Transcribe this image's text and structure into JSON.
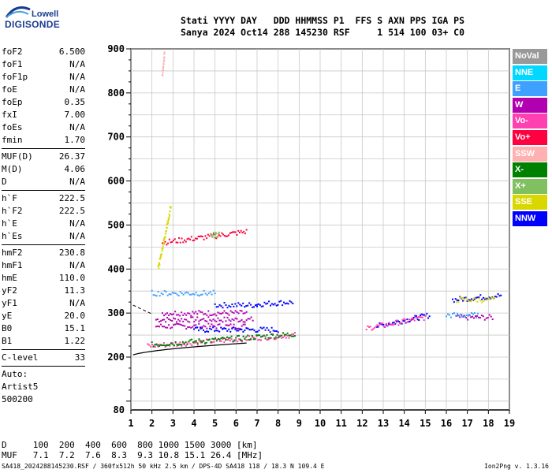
{
  "logo": {
    "line1": "Lowell",
    "line2": "DIGISONDE"
  },
  "header": {
    "row1": "Stati YYYY DAY   DDD HHMMSS P1  FFS S AXN PPS IGA PS",
    "row2": "Sanya 2024 Oct14 288 145230 RSF     1 514 100 03+ C0"
  },
  "params_block1": [
    {
      "name": "foF2",
      "value": "6.500"
    },
    {
      "name": "foF1",
      "value": "N/A"
    },
    {
      "name": "foF1p",
      "value": "N/A"
    },
    {
      "name": "foE",
      "value": "N/A"
    },
    {
      "name": "foEp",
      "value": "0.35"
    },
    {
      "name": "fxI",
      "value": "7.00"
    },
    {
      "name": "foEs",
      "value": "N/A"
    },
    {
      "name": "fmin",
      "value": "1.70"
    }
  ],
  "params_block2": [
    {
      "name": "MUF(D)",
      "value": "26.37"
    },
    {
      "name": "M(D)",
      "value": "4.06"
    },
    {
      "name": "D",
      "value": "N/A"
    }
  ],
  "params_block3": [
    {
      "name": "h`F",
      "value": "222.5"
    },
    {
      "name": "h`F2",
      "value": "222.5"
    },
    {
      "name": "h`E",
      "value": "N/A"
    },
    {
      "name": "h`Es",
      "value": "N/A"
    }
  ],
  "params_block4": [
    {
      "name": "hmF2",
      "value": "230.8"
    },
    {
      "name": "hmF1",
      "value": "N/A"
    },
    {
      "name": "hmE",
      "value": "110.0"
    },
    {
      "name": "yF2",
      "value": "11.3"
    },
    {
      "name": "yF1",
      "value": "N/A"
    },
    {
      "name": "yE",
      "value": "20.0"
    },
    {
      "name": "B0",
      "value": "15.1"
    },
    {
      "name": "B1",
      "value": "1.22"
    }
  ],
  "params_block5": [
    {
      "name": "C-level",
      "value": "33"
    }
  ],
  "auto": {
    "line1": "Auto:",
    "line2": "Artist5",
    "line3": "500200"
  },
  "legend": [
    {
      "label": "NoVal",
      "color": "#999999"
    },
    {
      "label": "NNE",
      "color": "#00d8ff"
    },
    {
      "label": "E",
      "color": "#3ea0ff"
    },
    {
      "label": "W",
      "color": "#b000b0"
    },
    {
      "label": "Vo-",
      "color": "#ff40b0"
    },
    {
      "label": "Vo+",
      "color": "#ff0040"
    },
    {
      "label": "SSW",
      "color": "#ffb0b0"
    },
    {
      "label": "X-",
      "color": "#008000"
    },
    {
      "label": "X+",
      "color": "#80c060"
    },
    {
      "label": "SSE",
      "color": "#d8d800"
    },
    {
      "label": "NNW",
      "color": "#0000ff"
    }
  ],
  "footer": {
    "d_row": "D     100  200  400  600  800 1000 1500 3000 [km]",
    "muf_row": "MUF   7.1  7.2  7.6  8.3  9.3 10.8 15.1 26.4 [MHz]",
    "credits": "SA418_2024288145230.RSF / 360fx512h 50 kHz 2.5 km / DPS-4D SA418 118 / 18.3 N 109.4 E",
    "version": "Ion2Png v. 1.3.16"
  },
  "chart_data": {
    "type": "scatter",
    "title": "",
    "xlabel": "",
    "ylabel": "",
    "x_ticks": [
      1,
      2,
      3,
      4,
      5,
      6,
      7,
      8,
      9,
      10,
      11,
      12,
      13,
      14,
      15,
      16,
      17,
      18,
      19
    ],
    "y_ticks_labeled": [
      80,
      200,
      300,
      400,
      500,
      600,
      700,
      800,
      900
    ],
    "ylim": [
      80,
      900
    ],
    "xlim": [
      1,
      19
    ],
    "grid": true,
    "series": [
      {
        "name": "W",
        "color": "#b000b0",
        "traces": [
          {
            "x": [
              2.2,
              6.8
            ],
            "y": [
              285,
              285
            ]
          },
          {
            "x": [
              2.2,
              6.5
            ],
            "y": [
              270,
              270
            ]
          },
          {
            "x": [
              2.5,
              6.5
            ],
            "y": [
              300,
              300
            ]
          },
          {
            "x": [
              16.5,
              18.2
            ],
            "y": [
              290,
              290
            ]
          }
        ]
      },
      {
        "name": "NNW",
        "color": "#0000ff",
        "traces": [
          {
            "x": [
              5.0,
              7.0
            ],
            "y": [
              318,
              318
            ]
          },
          {
            "x": [
              7.0,
              8.7
            ],
            "y": [
              320,
              325
            ]
          },
          {
            "x": [
              4.0,
              8.0
            ],
            "y": [
              262,
              262
            ]
          },
          {
            "x": [
              12.7,
              15.2
            ],
            "y": [
              270,
              295
            ]
          },
          {
            "x": [
              16.3,
              18.6
            ],
            "y": [
              330,
              340
            ]
          }
        ]
      },
      {
        "name": "Vo-",
        "color": "#ff40b0",
        "traces": [
          {
            "x": [
              1.8,
              8.8
            ],
            "y": [
              225,
              250
            ]
          },
          {
            "x": [
              12.2,
              15.0
            ],
            "y": [
              265,
              290
            ]
          }
        ]
      },
      {
        "name": "X-",
        "color": "#008000",
        "traces": [
          {
            "x": [
              2.0,
              8.8
            ],
            "y": [
              228,
              252
            ]
          }
        ]
      },
      {
        "name": "Vo+",
        "color": "#ff0040",
        "traces": [
          {
            "x": [
              2.5,
              5.0
            ],
            "y": [
              460,
              475
            ]
          },
          {
            "x": [
              5.0,
              6.5
            ],
            "y": [
              475,
              485
            ]
          }
        ]
      },
      {
        "name": "E",
        "color": "#3ea0ff",
        "traces": [
          {
            "x": [
              16.0,
              17.5
            ],
            "y": [
              295,
              295
            ]
          },
          {
            "x": [
              2.0,
              5.0
            ],
            "y": [
              345,
              345
            ]
          }
        ]
      },
      {
        "name": "SSE",
        "color": "#d8d800",
        "traces": [
          {
            "x": [
              2.3,
              2.9
            ],
            "y": [
              400,
              540
            ]
          },
          {
            "x": [
              16.5,
              18.3
            ],
            "y": [
              330,
              330
            ]
          }
        ]
      },
      {
        "name": "X+",
        "color": "#80c060",
        "traces": [
          {
            "x": [
              4.8,
              5.2
            ],
            "y": [
              475,
              480
            ]
          }
        ]
      },
      {
        "name": "SSW",
        "color": "#ffb0b0",
        "traces": [
          {
            "x": [
              2.5,
              2.6
            ],
            "y": [
              840,
              890
            ]
          }
        ]
      }
    ]
  }
}
